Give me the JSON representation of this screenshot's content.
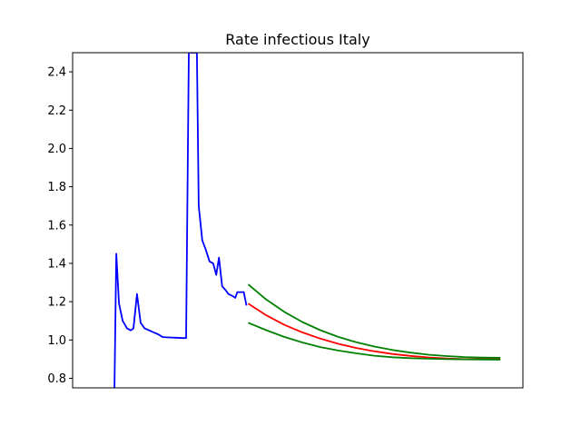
{
  "chart_data": {
    "type": "line",
    "title": "Rate infectious Italy",
    "xlabel": "",
    "ylabel": "",
    "xlim": [
      0,
      100
    ],
    "ylim": [
      0.75,
      2.5
    ],
    "yticks": [
      0.8,
      1.0,
      1.2,
      1.4,
      1.6,
      1.8,
      2.0,
      2.2,
      2.4
    ],
    "ytick_labels": [
      "0.8",
      "1.0",
      "1.2",
      "1.4",
      "1.6",
      "1.8",
      "2.0",
      "2.2",
      "2.4"
    ],
    "xticks": [],
    "grid": false,
    "series": [
      {
        "color": "#0000ff",
        "points": [
          [
            9.3,
            0.75
          ],
          [
            9.7,
            1.45
          ],
          [
            10.3,
            1.19
          ],
          [
            11.1,
            1.1
          ],
          [
            12.1,
            1.06
          ],
          [
            12.9,
            1.05
          ],
          [
            13.5,
            1.06
          ],
          [
            14.3,
            1.24
          ],
          [
            15.1,
            1.09
          ],
          [
            16.0,
            1.06
          ],
          [
            17.0,
            1.05
          ],
          [
            18.0,
            1.04
          ],
          [
            19.0,
            1.03
          ],
          [
            20.0,
            1.015
          ],
          [
            21.5,
            1.013
          ],
          [
            23.0,
            1.012
          ],
          [
            24.5,
            1.01
          ],
          [
            25.2,
            1.01
          ],
          [
            25.8,
            2.5
          ],
          [
            27.6,
            2.5
          ],
          [
            28.0,
            1.7
          ],
          [
            28.8,
            1.52
          ],
          [
            29.6,
            1.47
          ],
          [
            30.4,
            1.41
          ],
          [
            31.2,
            1.4
          ],
          [
            31.9,
            1.34
          ],
          [
            32.5,
            1.43
          ],
          [
            33.2,
            1.28
          ],
          [
            34.0,
            1.26
          ],
          [
            34.6,
            1.24
          ],
          [
            35.5,
            1.23
          ],
          [
            36.1,
            1.22
          ],
          [
            36.6,
            1.25
          ],
          [
            37.4,
            1.25
          ],
          [
            38.0,
            1.25
          ],
          [
            38.6,
            1.18
          ]
        ]
      },
      {
        "color": "#ff0000",
        "points": [
          [
            39.0,
            1.19
          ],
          [
            43.0,
            1.129
          ],
          [
            47.0,
            1.079
          ],
          [
            51.0,
            1.04
          ],
          [
            55.0,
            1.007
          ],
          [
            59.0,
            0.98
          ],
          [
            63.0,
            0.958
          ],
          [
            67.0,
            0.941
          ],
          [
            71.0,
            0.927
          ],
          [
            75.0,
            0.917
          ],
          [
            79.0,
            0.909
          ],
          [
            83.0,
            0.903
          ],
          [
            87.0,
            0.9
          ],
          [
            91.0,
            0.9
          ],
          [
            95.0,
            0.9
          ]
        ]
      },
      {
        "color": "#008000",
        "points": [
          [
            39.0,
            1.29
          ],
          [
            43.0,
            1.211
          ],
          [
            47.0,
            1.147
          ],
          [
            51.0,
            1.094
          ],
          [
            55.0,
            1.051
          ],
          [
            59.0,
            1.016
          ],
          [
            63.0,
            0.988
          ],
          [
            67.0,
            0.966
          ],
          [
            71.0,
            0.948
          ],
          [
            75.0,
            0.934
          ],
          [
            79.0,
            0.923
          ],
          [
            83.0,
            0.916
          ],
          [
            87.0,
            0.911
          ],
          [
            91.0,
            0.908
          ],
          [
            95.0,
            0.907
          ]
        ]
      },
      {
        "color": "#008000",
        "points": [
          [
            39.0,
            1.09
          ],
          [
            43.0,
            1.051
          ],
          [
            47.0,
            1.016
          ],
          [
            51.0,
            0.987
          ],
          [
            55.0,
            0.963
          ],
          [
            59.0,
            0.945
          ],
          [
            63.0,
            0.93
          ],
          [
            67.0,
            0.918
          ],
          [
            71.0,
            0.91
          ],
          [
            75.0,
            0.905
          ],
          [
            79.0,
            0.902
          ],
          [
            83.0,
            0.9
          ],
          [
            87.0,
            0.899
          ],
          [
            91.0,
            0.898
          ],
          [
            95.0,
            0.897
          ]
        ]
      }
    ]
  }
}
